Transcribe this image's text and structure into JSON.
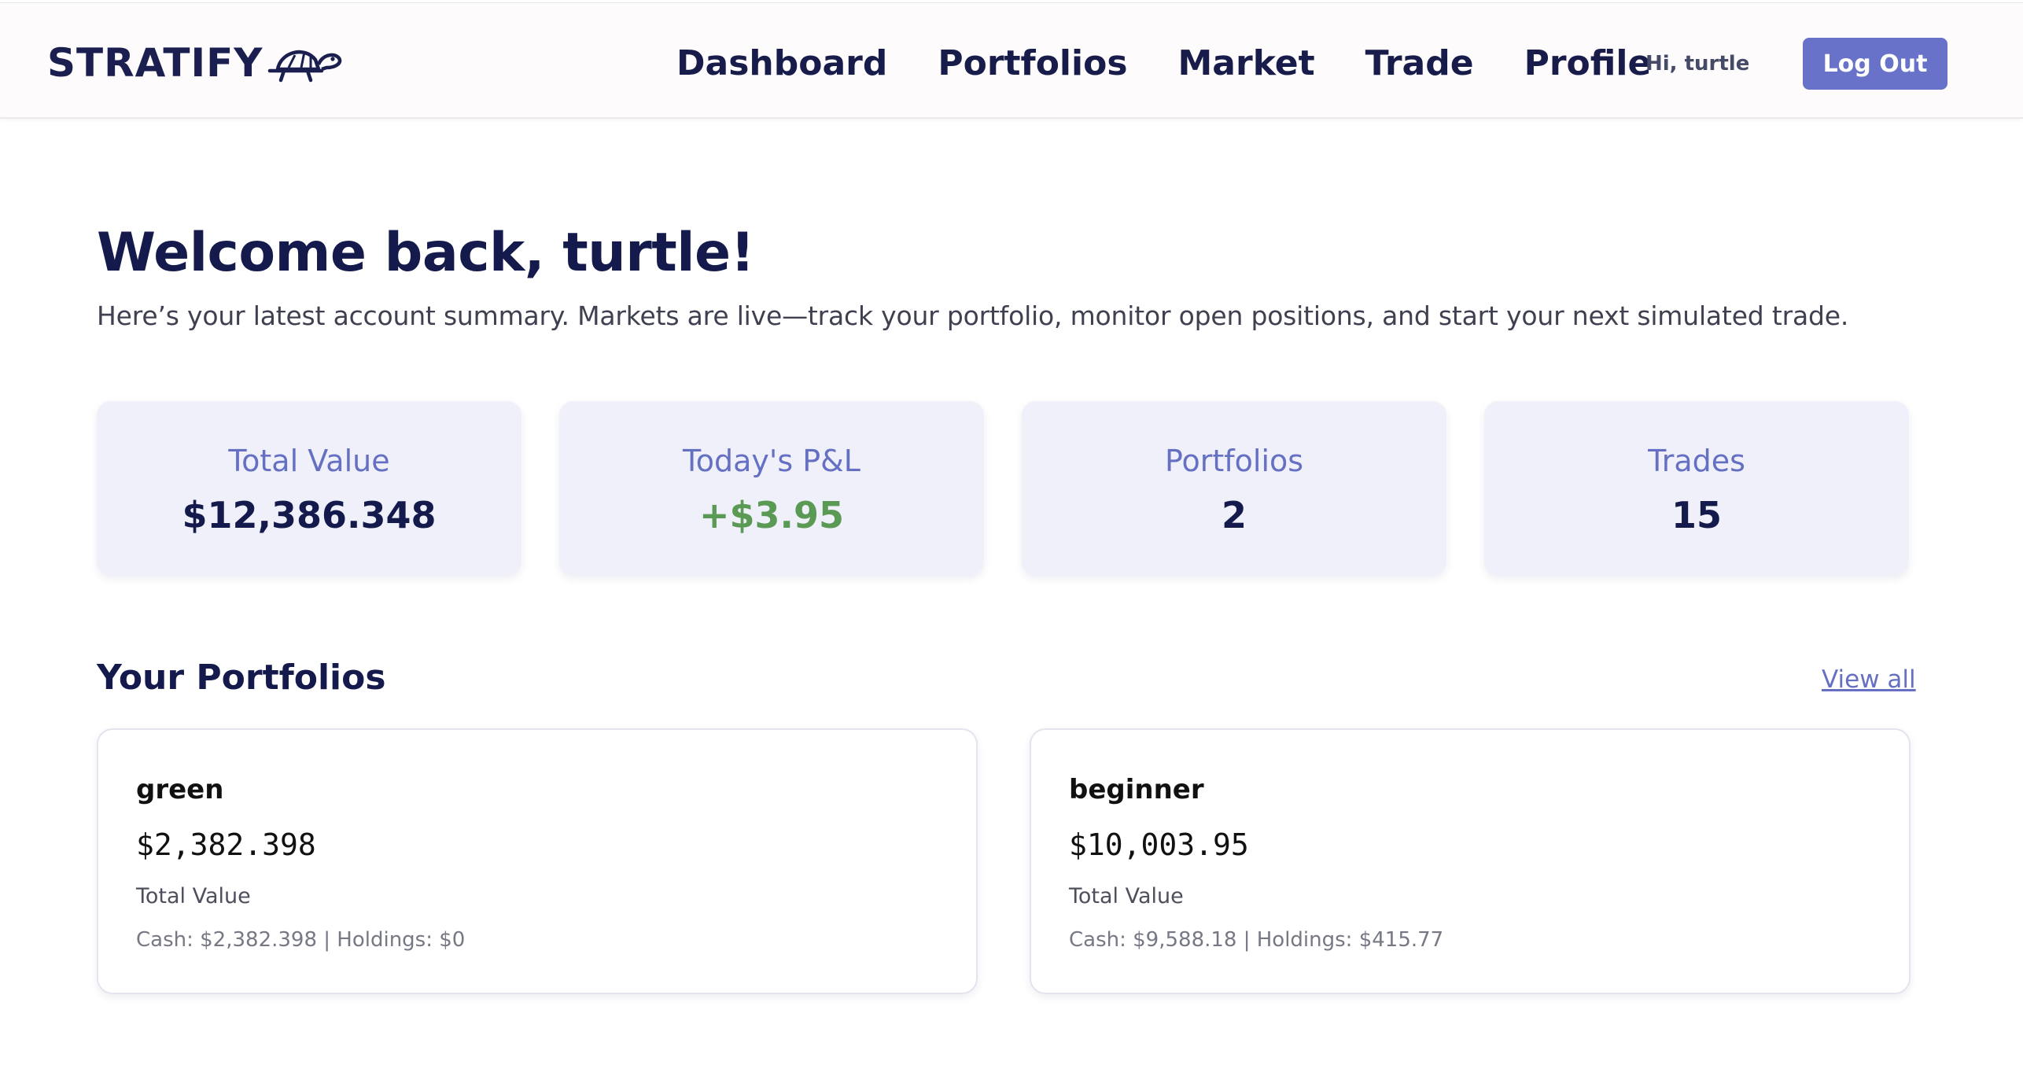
{
  "nav": {
    "logo_text": "STRATIFY",
    "links": [
      "Dashboard",
      "Portfolios",
      "Market",
      "Trade",
      "Profile"
    ],
    "greeting": "Hi, turtle",
    "logout_label": "Log Out"
  },
  "hero": {
    "title": "Welcome back, turtle!",
    "subtitle": "Here’s your latest account summary. Markets are live—track your portfolio, monitor open positions, and start your next simulated trade."
  },
  "stats": [
    {
      "label": "Total Value",
      "value": "$12,386.348"
    },
    {
      "label": "Today's P&L",
      "value": "+$3.95",
      "status_color": "#5a9a55"
    },
    {
      "label": "Portfolios",
      "value": "2"
    },
    {
      "label": "Trades",
      "value": "15"
    }
  ],
  "portfolios_section": {
    "title": "Your Portfolios",
    "view_all_label": "View all",
    "items": [
      {
        "name": "green",
        "value": "$2,382.398",
        "value_label": "Total Value",
        "breakdown": "Cash: $2,382.398 | Holdings: $0"
      },
      {
        "name": "beginner",
        "value": "$10,003.95",
        "value_label": "Total Value",
        "breakdown": "Cash: $9,588.18 | Holdings: $415.77"
      }
    ]
  },
  "colors": {
    "brand": "#1b1f4f",
    "accent": "#6872c9",
    "positive": "#5a9a55"
  },
  "icons": {
    "logo": "turtle-icon"
  }
}
